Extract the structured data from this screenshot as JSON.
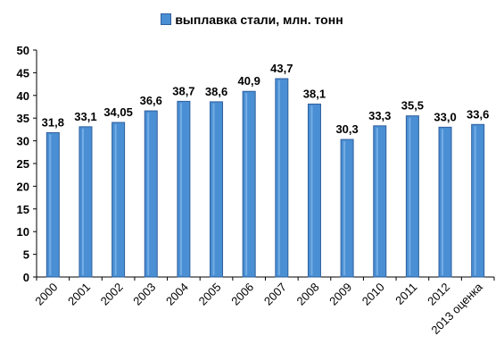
{
  "chart_data": {
    "type": "bar",
    "legend": "выплавка стали, млн. тонн",
    "categories": [
      "2000",
      "2001",
      "2002",
      "2003",
      "2004",
      "2005",
      "2006",
      "2007",
      "2008",
      "2009",
      "2010",
      "2011",
      "2012",
      "2013 оценка"
    ],
    "values": [
      31.8,
      33.1,
      34.05,
      36.6,
      38.7,
      38.6,
      40.9,
      43.7,
      38.1,
      30.3,
      33.3,
      35.5,
      33.0,
      33.6
    ],
    "value_labels": [
      "31,8",
      "33,1",
      "34,05",
      "36,6",
      "38,7",
      "38,6",
      "40,9",
      "43,7",
      "38,1",
      "30,3",
      "33,3",
      "35,5",
      "33,0",
      "33,6"
    ],
    "y_ticks": [
      "0",
      "5",
      "10",
      "15",
      "20",
      "25",
      "30",
      "35",
      "40",
      "45",
      "50"
    ],
    "ylim": [
      0,
      50
    ],
    "grid": false,
    "legend_position": "top",
    "colors": {
      "bar_fill": "#4a8fd3",
      "bar_edge": "#2f5f9e",
      "bar_highlight": "#7fb4ea",
      "axis": "#000000"
    }
  }
}
